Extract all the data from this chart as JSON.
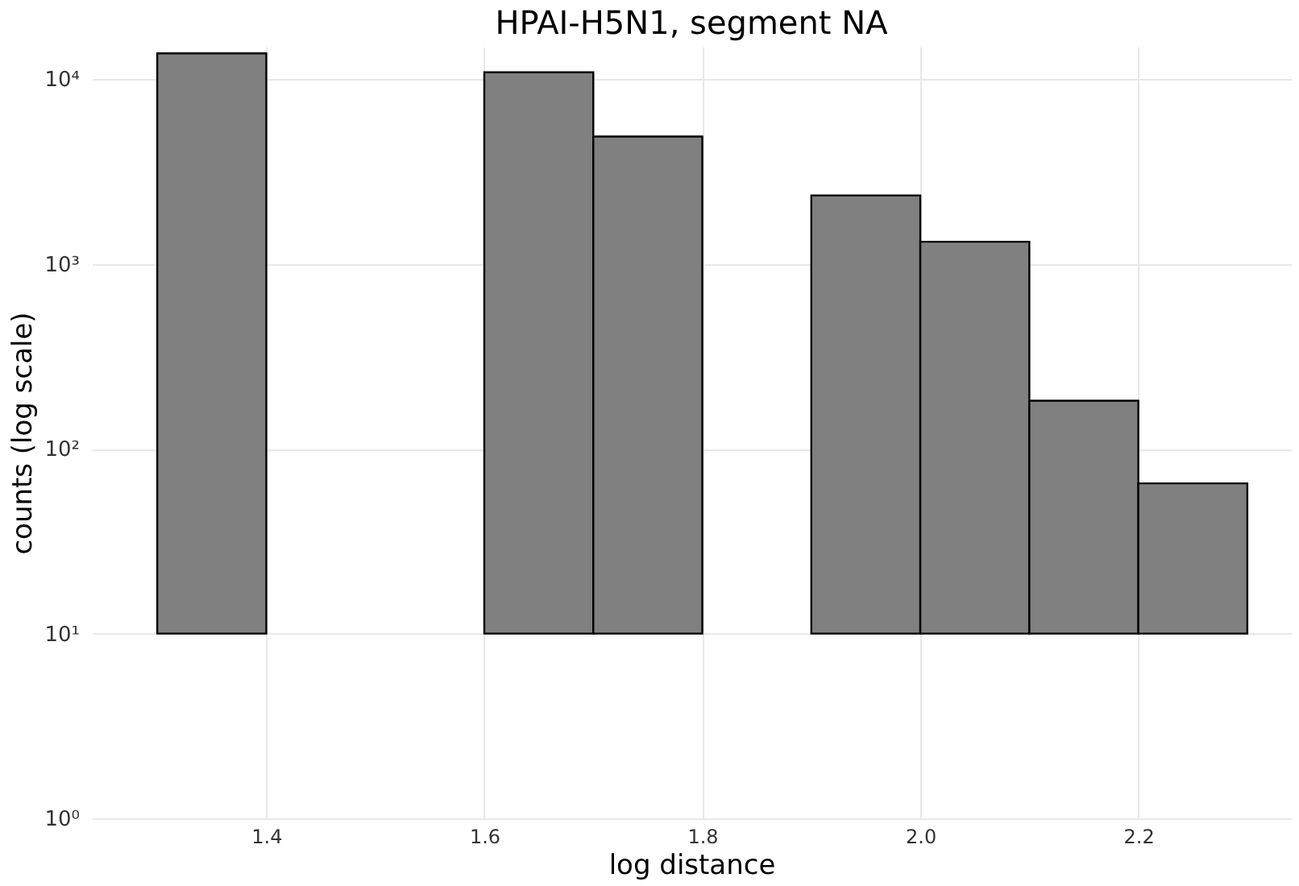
{
  "chart_data": {
    "type": "histogram",
    "title": "HPAI-H5N1, segment NA",
    "xlabel": "log distance",
    "ylabel": "counts (log scale)",
    "bins": [
      1.3,
      1.4,
      1.5,
      1.6,
      1.7,
      1.8,
      1.9,
      2.0,
      2.1,
      2.2,
      2.3
    ],
    "values": [
      13790,
      null,
      null,
      10890,
      4890,
      null,
      2340,
      1310,
      172,
      55
    ],
    "base": [
      10,
      null,
      null,
      10,
      10,
      null,
      10,
      10,
      10,
      10
    ],
    "color": "#808080",
    "log": "y",
    "xlim": [
      1.24,
      2.34
    ],
    "xticks": [
      {
        "value": 1.4,
        "label": "1.4"
      },
      {
        "value": 1.6,
        "label": "1.6"
      },
      {
        "value": 1.8,
        "label": "1.8"
      },
      {
        "value": 2.0,
        "label": "2.0"
      },
      {
        "value": 2.2,
        "label": "2.2"
      }
    ],
    "ylim": [
      1,
      15000
    ],
    "yticks": [
      {
        "value": 1,
        "label": "10⁰"
      },
      {
        "value": 10,
        "label": "10¹"
      },
      {
        "value": 100,
        "label": "10²"
      },
      {
        "value": 1000,
        "label": "10³"
      },
      {
        "value": 10000,
        "label": "10⁴"
      }
    ],
    "grid": true
  }
}
